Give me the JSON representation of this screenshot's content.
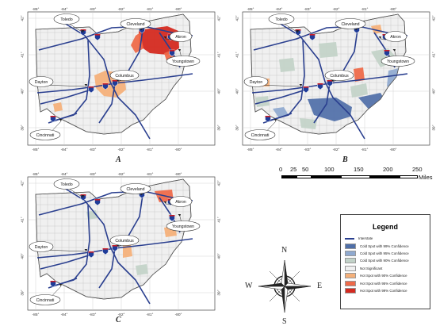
{
  "panels": [
    {
      "id": "A",
      "label": "A",
      "cities": [
        "Toledo",
        "Cleveland",
        "Akron",
        "Youngstown",
        "Columbus",
        "Dayton",
        "Cincinnati"
      ]
    },
    {
      "id": "B",
      "label": "B",
      "cities": [
        "Toledo",
        "Cleveland",
        "Akron",
        "Youngstown",
        "Columbus",
        "Dayton",
        "Cincinnati"
      ]
    },
    {
      "id": "C",
      "label": "C",
      "cities": [
        "Toledo",
        "Cleveland",
        "Akron",
        "Youngstown",
        "Columbus",
        "Dayton",
        "Cincinnati"
      ]
    }
  ],
  "longitude_ticks": [
    "-85°",
    "-84°",
    "-83°",
    "-82°",
    "-81°",
    "-80°"
  ],
  "latitude_ticks": [
    "42°",
    "41°",
    "40°",
    "39°"
  ],
  "scale_bar": {
    "ticks": [
      "0",
      "25",
      "50",
      "100",
      "150",
      "200",
      "250"
    ],
    "unit": "Miles"
  },
  "legend": {
    "title": "Legend",
    "items": [
      {
        "label": "Interstate",
        "color": "#2a3f8f",
        "kind": "line"
      },
      {
        "label": "Cold Spot with 99% Confidence",
        "color": "#4f6fa8",
        "kind": "fill"
      },
      {
        "label": "Cold Spot with 95% Confidence",
        "color": "#8fa9cf",
        "kind": "fill"
      },
      {
        "label": "Cold Spot with 90% Confidence",
        "color": "#c2d2c8",
        "kind": "fill"
      },
      {
        "label": "Not Significant",
        "color": "#f0f0f0",
        "kind": "fill"
      },
      {
        "label": "Hot Spot with 90% Confidence",
        "color": "#f4b07a",
        "kind": "fill"
      },
      {
        "label": "Hot Spot with 95% Confidence",
        "color": "#ee6a4a",
        "kind": "fill"
      },
      {
        "label": "Hot Spot with 99% Confidence",
        "color": "#d42a20",
        "kind": "fill"
      }
    ]
  },
  "compass": {
    "N": "N",
    "S": "S",
    "E": "E",
    "W": "W"
  }
}
